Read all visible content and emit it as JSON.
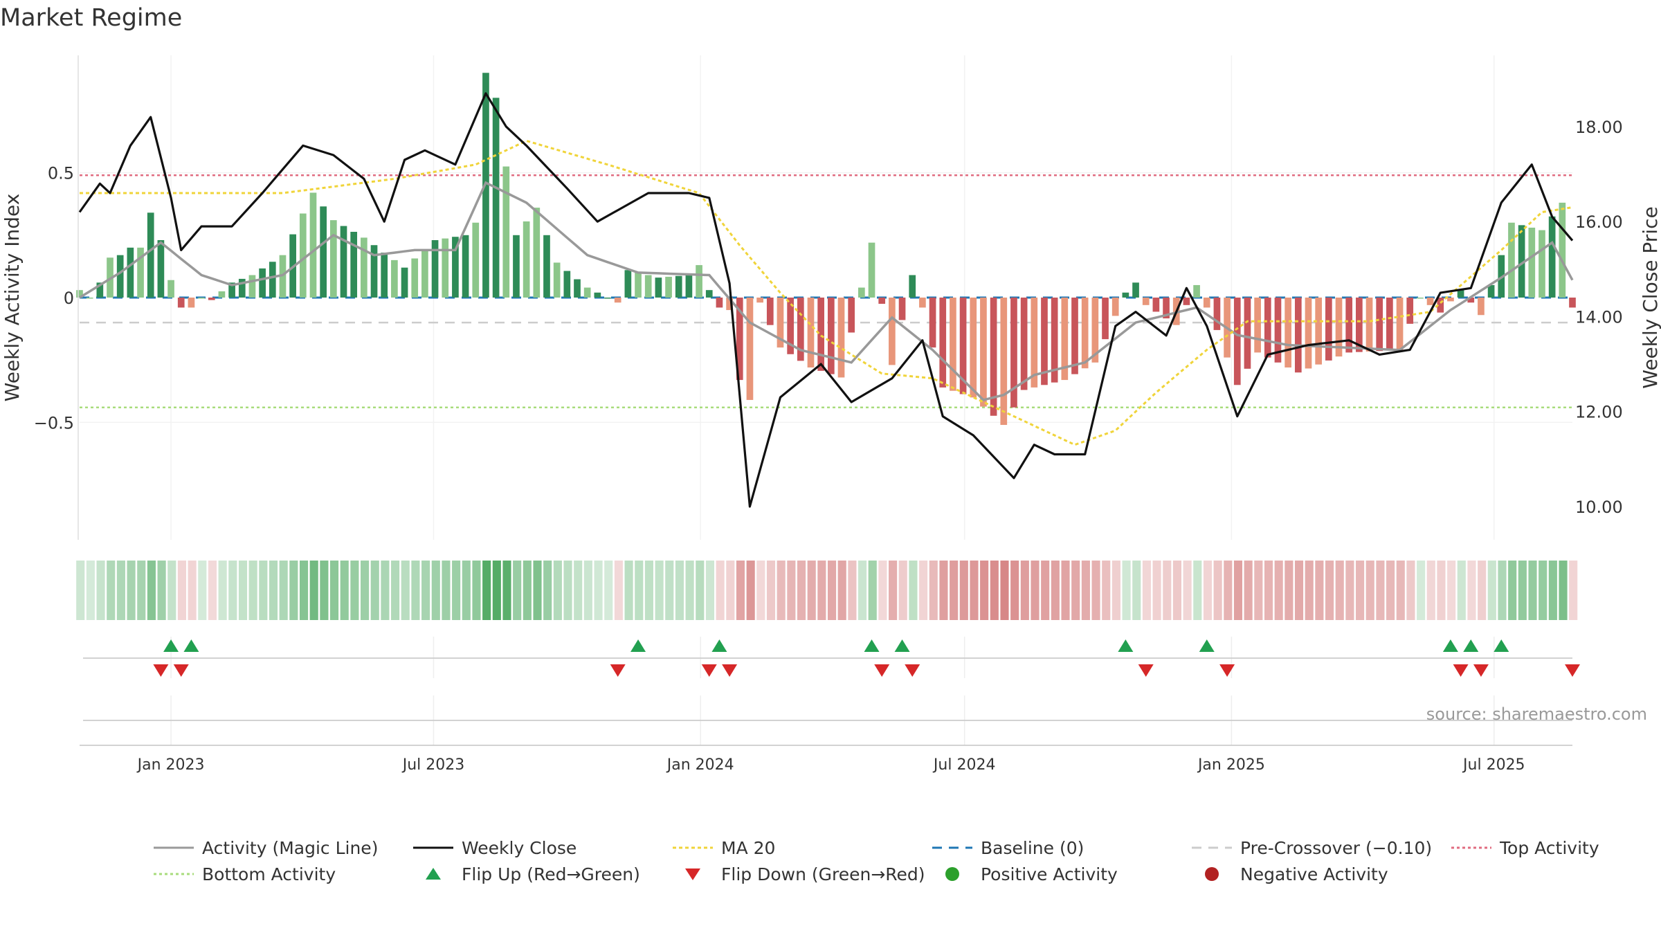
{
  "title": "Market Regime",
  "source": "source: sharemaestro.com",
  "colors": {
    "pos_dark": "#2e8b57",
    "pos_light": "#8cc68a",
    "neg_dark": "#c8555a",
    "neg_light": "#e8967a",
    "magic": "#999999",
    "close": "#111111",
    "ma20": "#f0d43a",
    "baseline": "#1f77b4",
    "precross": "#cccccc",
    "top": "#e06c80",
    "bottom": "#a8dc7c",
    "flip_up": "#22a050",
    "flip_down": "#d62728",
    "pos_dot": "#2ca02c",
    "neg_dot": "#b22222"
  },
  "chart_data": {
    "type": "bar",
    "left_axis": {
      "label": "Weekly Activity Index",
      "ylim": [
        -0.97,
        0.97
      ],
      "ticks": [
        0.5,
        0,
        -0.5
      ],
      "tick_labels": [
        "0.5",
        "0",
        "−0.5"
      ]
    },
    "right_axis": {
      "label": "Weekly Close Price",
      "ylim": [
        9.3,
        19.5
      ],
      "ticks": [
        18,
        16,
        14,
        12,
        10
      ],
      "tick_labels": [
        "18.00",
        "16.00",
        "14.00",
        "12.00",
        "10.00"
      ]
    },
    "x_start": "2022-10-30",
    "x_end": "2025-08-24",
    "x_ticks": [
      "2023-01-01",
      "2023-07-01",
      "2024-01-01",
      "2024-07-01",
      "2025-01-01",
      "2025-07-01"
    ],
    "x_tick_labels": [
      "Jan 2023",
      "Jul 2023",
      "Jan 2024",
      "Jul 2024",
      "Jan 2025",
      "Jul 2025"
    ],
    "reference_lines": {
      "baseline": 0,
      "pre_crossover": -0.1,
      "top_activity": 0.49,
      "bottom_activity": -0.44
    },
    "activity_anchors": [
      [
        "2022-10-30",
        0.03
      ],
      [
        "2022-11-06",
        0.0
      ],
      [
        "2022-11-13",
        0.06
      ],
      [
        "2022-11-20",
        0.16
      ],
      [
        "2022-11-27",
        0.17
      ],
      [
        "2022-12-04",
        0.2
      ],
      [
        "2022-12-11",
        0.2
      ],
      [
        "2022-12-18",
        0.34
      ],
      [
        "2022-12-25",
        0.23
      ],
      [
        "2023-01-01",
        0.07
      ],
      [
        "2023-01-08",
        -0.04
      ],
      [
        "2023-01-15",
        -0.04
      ],
      [
        "2023-01-22",
        0.0
      ],
      [
        "2023-01-29",
        -0.01
      ],
      [
        "2023-02-12",
        0.06
      ],
      [
        "2023-02-26",
        0.09
      ],
      [
        "2023-03-19",
        0.17
      ],
      [
        "2023-04-09",
        0.42
      ],
      [
        "2023-04-23",
        0.31
      ],
      [
        "2023-05-14",
        0.24
      ],
      [
        "2023-06-11",
        0.12
      ],
      [
        "2023-07-02",
        0.23
      ],
      [
        "2023-07-23",
        0.25
      ],
      [
        "2023-07-30",
        0.3
      ],
      [
        "2023-08-06",
        0.9
      ],
      [
        "2023-08-13",
        0.8
      ],
      [
        "2023-08-27",
        0.25
      ],
      [
        "2023-09-10",
        0.36
      ],
      [
        "2023-09-24",
        0.14
      ],
      [
        "2023-10-15",
        0.04
      ],
      [
        "2023-10-29",
        0.0
      ],
      [
        "2023-11-05",
        -0.02
      ],
      [
        "2023-11-12",
        0.11
      ],
      [
        "2023-12-03",
        0.08
      ],
      [
        "2023-12-24",
        0.09
      ],
      [
        "2023-12-31",
        0.13
      ],
      [
        "2024-01-07",
        0.03
      ],
      [
        "2024-01-14",
        -0.04
      ],
      [
        "2024-01-21",
        -0.05
      ],
      [
        "2024-01-28",
        -0.33
      ],
      [
        "2024-02-04",
        -0.41
      ],
      [
        "2024-02-11",
        -0.02
      ],
      [
        "2024-02-25",
        -0.2
      ],
      [
        "2024-03-17",
        -0.28
      ],
      [
        "2024-04-07",
        -0.32
      ],
      [
        "2024-04-28",
        0.22
      ],
      [
        "2024-05-12",
        -0.27
      ],
      [
        "2024-05-26",
        0.09
      ],
      [
        "2024-06-02",
        -0.04
      ],
      [
        "2024-06-16",
        -0.36
      ],
      [
        "2024-07-07",
        -0.4
      ],
      [
        "2024-07-28",
        -0.51
      ],
      [
        "2024-08-11",
        -0.37
      ],
      [
        "2024-09-08",
        -0.33
      ],
      [
        "2024-09-29",
        -0.26
      ],
      [
        "2024-10-20",
        0.02
      ],
      [
        "2024-10-27",
        0.06
      ],
      [
        "2024-11-03",
        -0.03
      ],
      [
        "2024-11-24",
        -0.11
      ],
      [
        "2024-12-08",
        0.05
      ],
      [
        "2024-12-22",
        -0.13
      ],
      [
        "2025-01-05",
        -0.35
      ],
      [
        "2025-01-19",
        -0.22
      ],
      [
        "2025-02-16",
        -0.3
      ],
      [
        "2025-03-23",
        -0.22
      ],
      [
        "2025-04-27",
        -0.21
      ],
      [
        "2025-05-11",
        0.0
      ],
      [
        "2025-05-25",
        -0.06
      ],
      [
        "2025-06-08",
        0.03
      ],
      [
        "2025-06-22",
        -0.07
      ],
      [
        "2025-07-06",
        0.17
      ],
      [
        "2025-07-13",
        0.3
      ],
      [
        "2025-08-03",
        0.27
      ],
      [
        "2025-08-17",
        0.38
      ],
      [
        "2025-08-24",
        -0.04
      ]
    ],
    "magic_anchors": [
      [
        "2022-10-30",
        0.0
      ],
      [
        "2022-11-27",
        0.1
      ],
      [
        "2022-12-25",
        0.22
      ],
      [
        "2023-01-22",
        0.09
      ],
      [
        "2023-02-12",
        0.05
      ],
      [
        "2023-03-19",
        0.09
      ],
      [
        "2023-04-23",
        0.25
      ],
      [
        "2023-05-21",
        0.17
      ],
      [
        "2023-06-18",
        0.19
      ],
      [
        "2023-07-16",
        0.19
      ],
      [
        "2023-08-06",
        0.46
      ],
      [
        "2023-09-03",
        0.38
      ],
      [
        "2023-10-15",
        0.17
      ],
      [
        "2023-11-19",
        0.1
      ],
      [
        "2024-01-07",
        0.09
      ],
      [
        "2024-02-04",
        -0.1
      ],
      [
        "2024-03-10",
        -0.21
      ],
      [
        "2024-04-14",
        -0.26
      ],
      [
        "2024-05-12",
        -0.08
      ],
      [
        "2024-06-09",
        -0.21
      ],
      [
        "2024-07-14",
        -0.41
      ],
      [
        "2024-07-28",
        -0.39
      ],
      [
        "2024-08-18",
        -0.31
      ],
      [
        "2024-09-22",
        -0.26
      ],
      [
        "2024-10-27",
        -0.1
      ],
      [
        "2024-12-08",
        -0.04
      ],
      [
        "2025-01-05",
        -0.15
      ],
      [
        "2025-02-09",
        -0.19
      ],
      [
        "2025-04-27",
        -0.21
      ],
      [
        "2025-06-01",
        -0.05
      ],
      [
        "2025-07-06",
        0.08
      ],
      [
        "2025-08-10",
        0.22
      ],
      [
        "2025-08-24",
        0.07
      ]
    ],
    "close_anchors": [
      [
        "2022-10-30",
        16.2
      ],
      [
        "2022-11-13",
        16.8
      ],
      [
        "2022-11-20",
        16.6
      ],
      [
        "2022-12-04",
        17.6
      ],
      [
        "2022-12-18",
        18.2
      ],
      [
        "2023-01-01",
        16.5
      ],
      [
        "2023-01-08",
        15.4
      ],
      [
        "2023-01-22",
        15.9
      ],
      [
        "2023-02-12",
        15.9
      ],
      [
        "2023-03-05",
        16.6
      ],
      [
        "2023-04-02",
        17.6
      ],
      [
        "2023-04-23",
        17.4
      ],
      [
        "2023-05-14",
        16.9
      ],
      [
        "2023-05-28",
        16.0
      ],
      [
        "2023-06-11",
        17.3
      ],
      [
        "2023-06-25",
        17.5
      ],
      [
        "2023-07-16",
        17.2
      ],
      [
        "2023-08-06",
        18.7
      ],
      [
        "2023-08-20",
        18.0
      ],
      [
        "2023-09-03",
        17.6
      ],
      [
        "2023-10-01",
        16.7
      ],
      [
        "2023-10-22",
        16.0
      ],
      [
        "2023-11-26",
        16.6
      ],
      [
        "2023-12-24",
        16.6
      ],
      [
        "2024-01-07",
        16.5
      ],
      [
        "2024-01-21",
        14.7
      ],
      [
        "2024-02-04",
        10.0
      ],
      [
        "2024-02-25",
        12.3
      ],
      [
        "2024-03-24",
        13.0
      ],
      [
        "2024-04-14",
        12.2
      ],
      [
        "2024-05-12",
        12.7
      ],
      [
        "2024-06-02",
        13.5
      ],
      [
        "2024-06-16",
        11.9
      ],
      [
        "2024-07-07",
        11.5
      ],
      [
        "2024-08-04",
        10.6
      ],
      [
        "2024-08-18",
        11.3
      ],
      [
        "2024-09-01",
        11.1
      ],
      [
        "2024-09-22",
        11.1
      ],
      [
        "2024-10-13",
        13.8
      ],
      [
        "2024-10-27",
        14.1
      ],
      [
        "2024-11-17",
        13.6
      ],
      [
        "2024-12-01",
        14.6
      ],
      [
        "2024-12-15",
        13.8
      ],
      [
        "2025-01-05",
        11.9
      ],
      [
        "2025-01-26",
        13.2
      ],
      [
        "2025-02-23",
        13.4
      ],
      [
        "2025-03-23",
        13.5
      ],
      [
        "2025-04-13",
        13.2
      ],
      [
        "2025-05-04",
        13.3
      ],
      [
        "2025-05-25",
        14.5
      ],
      [
        "2025-06-15",
        14.6
      ],
      [
        "2025-07-06",
        16.4
      ],
      [
        "2025-07-27",
        17.2
      ],
      [
        "2025-08-10",
        16.1
      ],
      [
        "2025-08-24",
        15.6
      ]
    ],
    "ma20_anchors": [
      [
        "2022-10-30",
        16.6
      ],
      [
        "2023-03-19",
        16.6
      ],
      [
        "2023-06-04",
        16.9
      ],
      [
        "2023-07-30",
        17.2
      ],
      [
        "2023-09-03",
        17.7
      ],
      [
        "2023-10-29",
        17.2
      ],
      [
        "2023-12-31",
        16.6
      ],
      [
        "2024-01-28",
        15.5
      ],
      [
        "2024-02-25",
        14.5
      ],
      [
        "2024-03-24",
        13.6
      ],
      [
        "2024-05-05",
        12.8
      ],
      [
        "2024-06-09",
        12.7
      ],
      [
        "2024-08-18",
        11.7
      ],
      [
        "2024-09-15",
        11.3
      ],
      [
        "2024-10-13",
        11.6
      ],
      [
        "2024-11-10",
        12.4
      ],
      [
        "2024-12-15",
        13.3
      ],
      [
        "2025-01-12",
        13.9
      ],
      [
        "2025-04-06",
        13.9
      ],
      [
        "2025-05-18",
        14.1
      ],
      [
        "2025-07-06",
        15.4
      ],
      [
        "2025-08-03",
        16.2
      ],
      [
        "2025-08-24",
        16.3
      ]
    ],
    "flip_up_dates": [
      "2023-01-01",
      "2023-01-15",
      "2023-11-19",
      "2024-01-14",
      "2024-04-28",
      "2024-05-19",
      "2024-10-20",
      "2024-12-15",
      "2025-06-01",
      "2025-06-15",
      "2025-07-06"
    ],
    "flip_down_dates": [
      "2022-12-25",
      "2023-01-08",
      "2023-11-05",
      "2024-01-07",
      "2024-01-21",
      "2024-05-05",
      "2024-05-26",
      "2024-11-03",
      "2024-12-29",
      "2025-06-08",
      "2025-06-22",
      "2025-08-24"
    ],
    "legend": [
      {
        "label": "Activity (Magic Line)",
        "kind": "line",
        "color": "#999999",
        "dash": ""
      },
      {
        "label": "Weekly Close",
        "kind": "line",
        "color": "#111111",
        "dash": ""
      },
      {
        "label": "MA 20",
        "kind": "line",
        "color": "#f0d43a",
        "dash": "5,4"
      },
      {
        "label": "Baseline (0)",
        "kind": "line",
        "color": "#1f77b4",
        "dash": "14,10"
      },
      {
        "label": "Pre-Crossover (−0.10)",
        "kind": "line",
        "color": "#cccccc",
        "dash": "14,10"
      },
      {
        "label": "Top Activity",
        "kind": "line",
        "color": "#e06c80",
        "dash": "4,4"
      },
      {
        "label": "Bottom Activity",
        "kind": "line",
        "color": "#a8dc7c",
        "dash": "4,4"
      },
      {
        "label": "Flip Up (Red→Green)",
        "kind": "tri-up",
        "color": "#22a050",
        "dash": ""
      },
      {
        "label": "Flip Down (Green→Red)",
        "kind": "tri-down",
        "color": "#d62728",
        "dash": ""
      },
      {
        "label": "Positive Activity",
        "kind": "dot",
        "color": "#2ca02c",
        "dash": ""
      },
      {
        "label": "Negative Activity",
        "kind": "dot",
        "color": "#b22222",
        "dash": ""
      }
    ]
  }
}
